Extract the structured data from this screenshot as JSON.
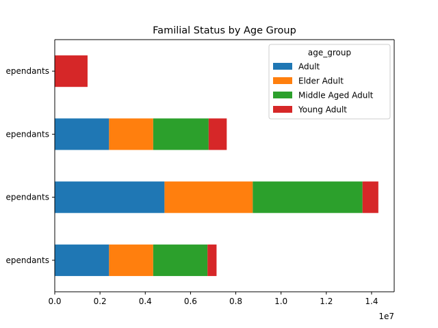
{
  "chart_data": {
    "type": "bar",
    "orientation": "horizontal",
    "stacked": true,
    "title": "Familial Status by Age Group",
    "xlabel": "",
    "ylabel": "",
    "x_offset_label": "1e7",
    "x_scale_factor": 10000000,
    "xlim": [
      0,
      15000000
    ],
    "x_ticks": [
      0,
      2000000,
      4000000,
      6000000,
      8000000,
      10000000,
      12000000,
      14000000
    ],
    "x_tick_labels": [
      "0.0",
      "0.2",
      "0.4",
      "0.6",
      "0.8",
      "1.0",
      "1.2",
      "1.4"
    ],
    "categories": [
      "ependants",
      "ependants",
      "ependants",
      "ependants"
    ],
    "grid": false,
    "legend": {
      "title": "age_group",
      "placement": "top-right"
    },
    "series": [
      {
        "name": "Adult",
        "color": "#1f77b4",
        "values": [
          2400000,
          4850000,
          2400000,
          0
        ]
      },
      {
        "name": "Elder Adult",
        "color": "#ff7f0e",
        "values": [
          1950000,
          3900000,
          1950000,
          0
        ]
      },
      {
        "name": "Middle Aged Adult",
        "color": "#2ca02c",
        "values": [
          2400000,
          4850000,
          2450000,
          0
        ]
      },
      {
        "name": "Young Adult",
        "color": "#d62728",
        "values": [
          400000,
          700000,
          800000,
          1450000
        ]
      }
    ]
  }
}
